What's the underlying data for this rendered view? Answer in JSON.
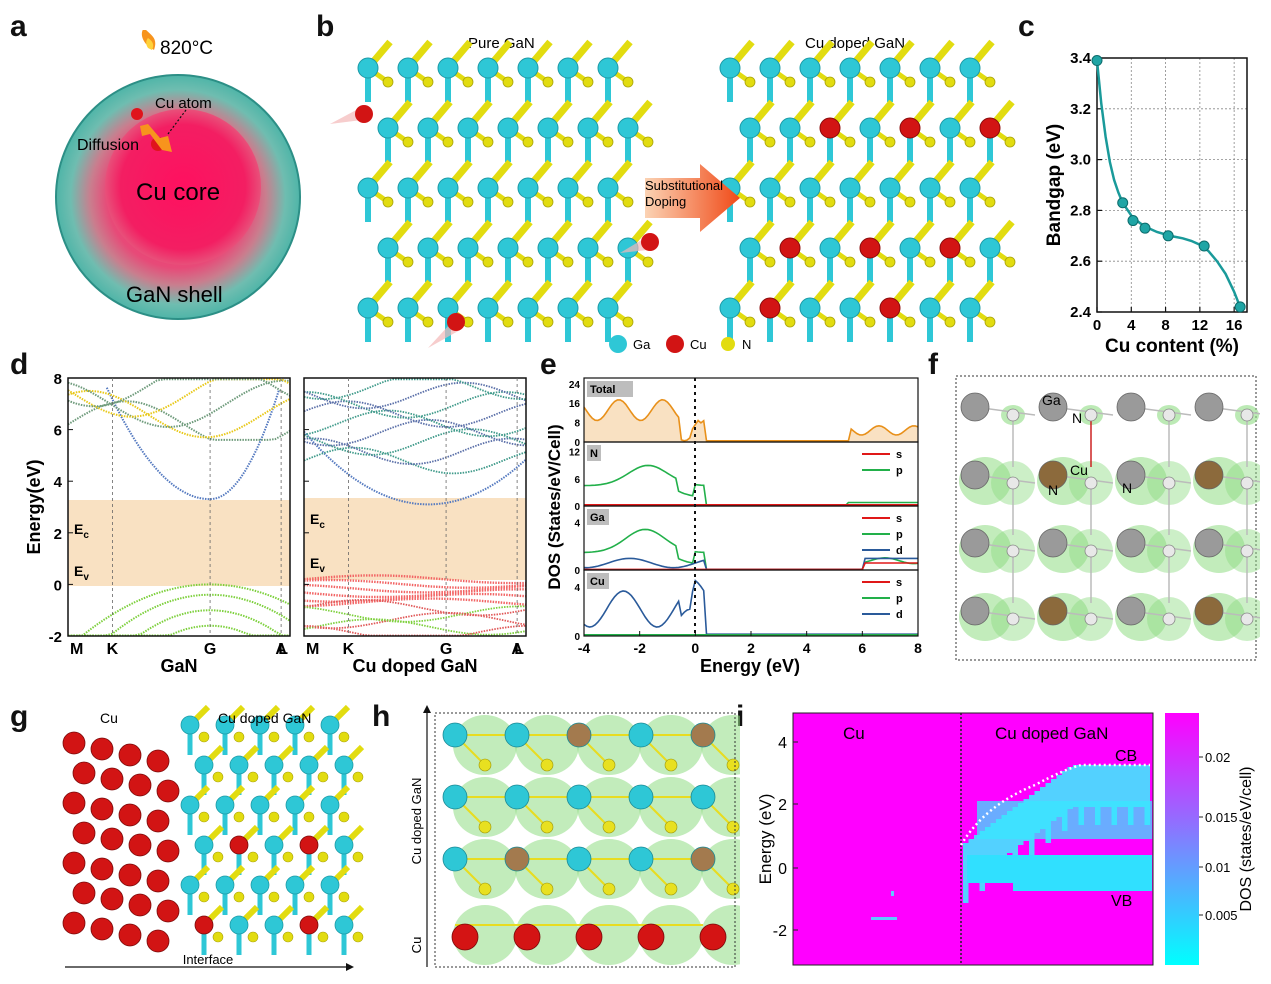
{
  "labels": {
    "a": "a",
    "b": "b",
    "c": "c",
    "d": "d",
    "e": "e",
    "f": "f",
    "g": "g",
    "h": "h",
    "i": "i"
  },
  "panel_a": {
    "temperature": "820°C",
    "cu_atom": "Cu atom",
    "diffusion": "Diffusion",
    "core": "Cu core",
    "shell": "GaN shell"
  },
  "panel_b": {
    "left_title": "Pure GaN",
    "right_title": "Cu doped GaN",
    "arrow_line1": "Substitutional",
    "arrow_line2": "Doping",
    "legend": [
      "Ga",
      "Cu",
      "N"
    ]
  },
  "colors": {
    "ga": "#2ec7d6",
    "cu": "#d21414",
    "n": "#e2dc10",
    "teal": "#1a9a9a",
    "magenta": "#ff00ff",
    "orange_fill": "#f8d9b3"
  },
  "chart_data": [
    {
      "id": "c",
      "type": "line",
      "xlabel": "Cu content (%)",
      "ylabel": "Bandgap (eV)",
      "xlim": [
        0,
        17.5
      ],
      "ylim": [
        2.4,
        3.4
      ],
      "xticks": [
        0,
        4,
        8,
        12,
        16
      ],
      "yticks": [
        2.4,
        2.6,
        2.8,
        3.0,
        3.2,
        3.4
      ],
      "ytick_labels": [
        "2.4",
        "2.6",
        "2.8",
        "3.0",
        "3.2",
        "3.4"
      ],
      "grid": true,
      "x": [
        0,
        3,
        4.2,
        5.6,
        8.3,
        12.5,
        16.7
      ],
      "y": [
        3.39,
        2.83,
        2.76,
        2.73,
        2.7,
        2.66,
        2.42
      ],
      "fit_x": [
        0,
        0.5,
        1,
        1.5,
        2,
        2.5,
        3,
        4,
        5,
        6,
        7,
        8,
        9,
        10,
        11,
        12,
        13,
        14,
        15,
        16,
        16.7
      ],
      "fit_y": [
        3.39,
        3.22,
        3.09,
        2.99,
        2.92,
        2.87,
        2.83,
        2.78,
        2.75,
        2.73,
        2.715,
        2.705,
        2.697,
        2.69,
        2.68,
        2.665,
        2.64,
        2.6,
        2.55,
        2.48,
        2.42
      ]
    },
    {
      "id": "d",
      "type": "line",
      "ylabel": "Energy(eV)",
      "ylim": [
        -2,
        8
      ],
      "yticks": [
        -2,
        0,
        2,
        4,
        6,
        8
      ],
      "ytick_labels": [
        "-2",
        "0",
        "2",
        "4",
        "6",
        "8"
      ],
      "kpoints": [
        "M",
        "K",
        "G",
        "A",
        "L"
      ],
      "subplots": [
        {
          "xlabel": "GaN",
          "band_edges": {
            "Ec": "E",
            "Ec_sub": "c",
            "Ev": "E",
            "Ev_sub": "v"
          },
          "gap": [
            0,
            3.3
          ]
        },
        {
          "xlabel": "Cu doped GaN",
          "band_edges": {
            "Ec": "E",
            "Ec_sub": "c",
            "Ev": "E",
            "Ev_sub": "v"
          },
          "gap": [
            0.4,
            3.1
          ]
        }
      ]
    },
    {
      "id": "e",
      "type": "area",
      "xlabel": "Energy (eV)",
      "ylabel": "DOS (States/eV/Cell)",
      "xlim": [
        -4,
        8
      ],
      "xticks": [
        -4,
        -2,
        0,
        2,
        4,
        6,
        8
      ],
      "xtick_labels": [
        "-4",
        "-2",
        "0",
        "2",
        "4",
        "6",
        "8"
      ],
      "subplots": [
        {
          "name": "Total",
          "yticks": [
            "0",
            "8",
            "16",
            "24"
          ],
          "legend": []
        },
        {
          "name": "N",
          "yticks": [
            "0",
            "6",
            "12"
          ],
          "legend": [
            "s",
            "p"
          ]
        },
        {
          "name": "Ga",
          "yticks": [
            "0",
            "4"
          ],
          "legend": [
            "s",
            "p",
            "d"
          ]
        },
        {
          "name": "Cu",
          "yticks": [
            "0",
            "4"
          ],
          "legend": [
            "s",
            "p",
            "d"
          ]
        }
      ]
    },
    {
      "id": "i",
      "type": "heatmap",
      "ylabel": "Energy (eV)",
      "yticks": [
        "4",
        "2",
        "0",
        "-2"
      ],
      "regions": [
        "Cu",
        "Cu doped GaN"
      ],
      "annotations": [
        "CB",
        "VB"
      ],
      "colorbar_label": "DOS (states/eV/cell)",
      "colorbar_ticks": [
        "0.02",
        "0.015",
        "0.01",
        "0.005"
      ]
    }
  ],
  "panel_f": {
    "labels": [
      "Ga",
      "N",
      "Cu",
      "N",
      "N"
    ]
  },
  "panel_g": {
    "left": "Cu",
    "right": "Cu doped GaN",
    "axis": "Interface"
  },
  "panel_h": {
    "top": "Cu doped GaN",
    "bottom": "Cu"
  }
}
